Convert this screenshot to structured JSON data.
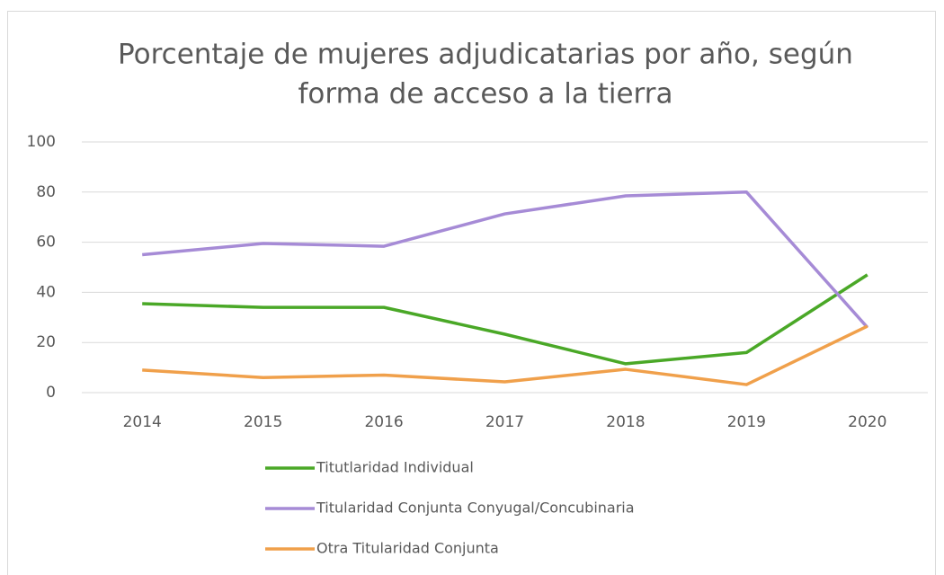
{
  "chart_data": {
    "type": "line",
    "title": [
      "Porcentaje de mujeres adjudicatarias por año, según",
      "forma de acceso a la tierra"
    ],
    "categories": [
      "2014",
      "2015",
      "2016",
      "2017",
      "2018",
      "2019",
      "2020"
    ],
    "series": [
      {
        "name": "Titutlaridad Individual",
        "color": "#4aa827",
        "values": [
          35.5,
          34,
          34,
          23.3,
          11.5,
          16,
          47
        ]
      },
      {
        "name": "Titularidad Conjunta Conyugal/Concubinaria",
        "color": "#a68bd6",
        "values": [
          55,
          59.5,
          58.4,
          71.3,
          78.5,
          80,
          26
        ]
      },
      {
        "name": "Otra Titularidad Conjunta",
        "color": "#f0a04b",
        "values": [
          9,
          6,
          7,
          4.3,
          9.3,
          3.2,
          26.5
        ]
      }
    ],
    "ylim": [
      0,
      100
    ],
    "yticks": [
      0,
      20,
      40,
      60,
      80,
      100
    ],
    "grid": true,
    "legend": "bottom"
  }
}
